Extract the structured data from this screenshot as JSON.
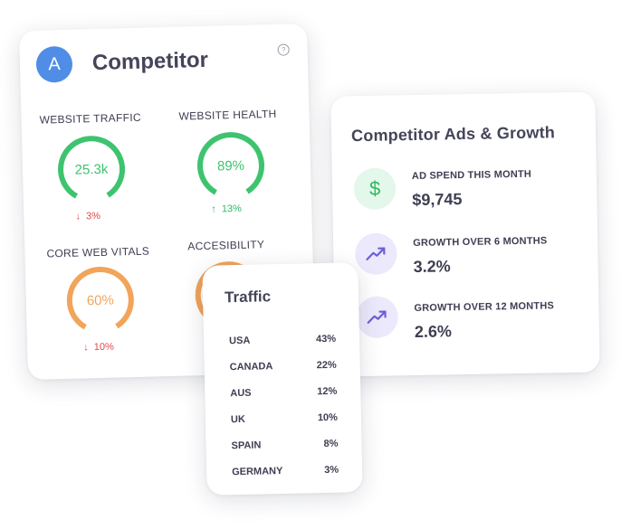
{
  "competitor": {
    "avatar_letter": "A",
    "title": "Competitor",
    "help_symbol": "?",
    "metrics": [
      {
        "label": "WEBSITE TRAFFIC",
        "value": "25.3k",
        "trend_arrow": "↓",
        "trend": "3%",
        "direction": "down",
        "color": "#3ec36f",
        "fill": 0.83
      },
      {
        "label": "WEBSITE HEALTH",
        "value": "89%",
        "trend_arrow": "↑",
        "trend": "13%",
        "direction": "up",
        "color": "#3ec36f",
        "fill": 0.83
      },
      {
        "label": "CORE WEB VITALS",
        "value": "60%",
        "trend_arrow": "↓",
        "trend": "10%",
        "direction": "down",
        "color": "#f2a45a",
        "fill": 0.83
      },
      {
        "label": "ACCESIBILITY",
        "value": "",
        "trend_arrow": "",
        "trend": "",
        "direction": "down",
        "color": "#f2a45a",
        "fill": 0.83
      }
    ]
  },
  "ads": {
    "title": "Competitor Ads & Growth",
    "items": [
      {
        "label": "AD SPEND THIS MONTH",
        "value": "$9,745",
        "icon": "dollar-icon",
        "symbol": "$"
      },
      {
        "label": "GROWTH OVER 6 MONTHS",
        "value": "3.2%",
        "icon": "trending-up-icon"
      },
      {
        "label": "GROWTH OVER 12 MONTHS",
        "value": "2.6%",
        "icon": "trending-up-icon"
      }
    ]
  },
  "traffic": {
    "title": "Traffic",
    "rows": [
      {
        "country": "USA",
        "pct": "43%"
      },
      {
        "country": "CANADA",
        "pct": "22%"
      },
      {
        "country": "AUS",
        "pct": "12%"
      },
      {
        "country": "UK",
        "pct": "10%"
      },
      {
        "country": "SPAIN",
        "pct": "8%"
      },
      {
        "country": "GERMANY",
        "pct": "3%"
      }
    ]
  },
  "colors": {
    "green": "#3ec36f",
    "orange": "#f2a45a",
    "red": "#e04848",
    "avatar": "#4f8de6",
    "purple": "#6c5fd8"
  }
}
